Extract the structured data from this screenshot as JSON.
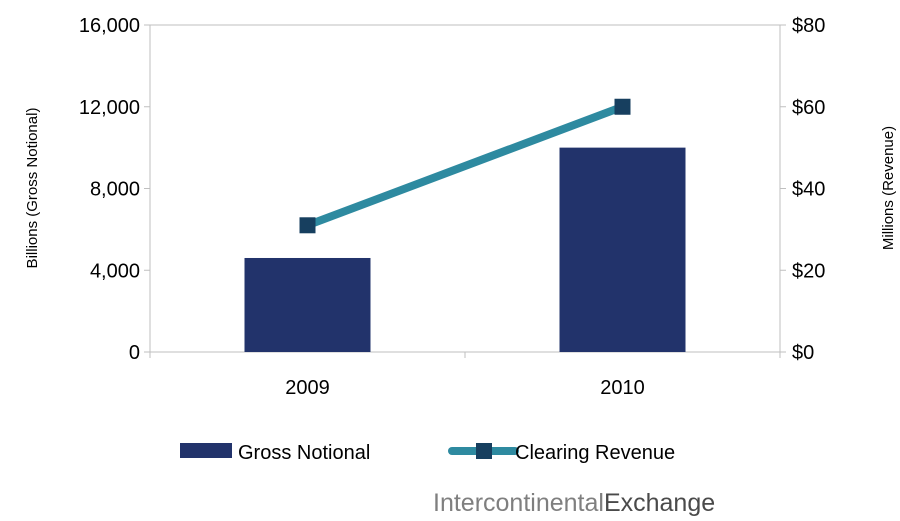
{
  "chart_data": {
    "type": "bar",
    "categories": [
      "2009",
      "2010"
    ],
    "series": [
      {
        "name": "Gross Notional",
        "type": "bar",
        "axis": "left",
        "values": [
          4600,
          10000
        ],
        "color": "#22336b"
      },
      {
        "name": "Clearing Revenue",
        "type": "line",
        "axis": "right",
        "values": [
          31,
          60
        ],
        "color": "#2e8aa0",
        "marker_color": "#173f5f"
      }
    ],
    "ylabel": "Billions (Gross Notional)",
    "ylabel_right": "Millions (Revenue)",
    "ylim": [
      0,
      16000
    ],
    "ylim_right": [
      0,
      80
    ],
    "yticks": [
      "0",
      "4,000",
      "8,000",
      "12,000",
      "16,000"
    ],
    "yticks_right": [
      "$0",
      "$20",
      "$40",
      "$60",
      "$80"
    ],
    "grid": false,
    "legend_position": "bottom"
  },
  "footer": {
    "logo_part1": "Intercontinental",
    "logo_part2": "Exchange"
  }
}
